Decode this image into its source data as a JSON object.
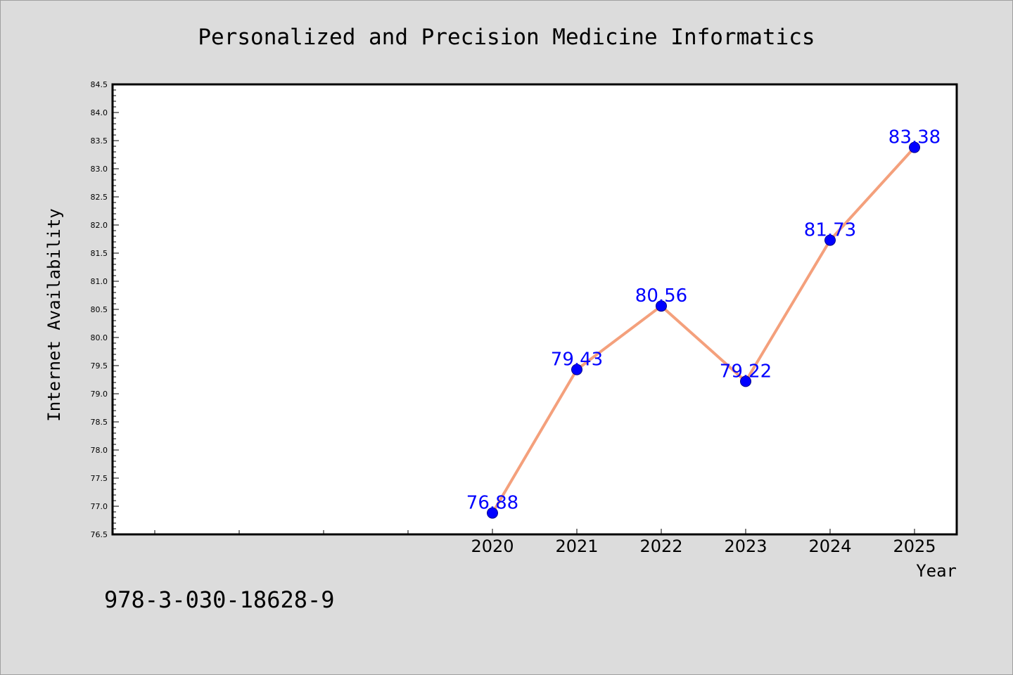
{
  "isbn": "978-3-030-18628-9",
  "chart_data": {
    "type": "line",
    "title": "Personalized and Precision Medicine Informatics",
    "xlabel": "Year",
    "ylabel": "Internet Availability",
    "x": [
      "2020",
      "2021",
      "2022",
      "2023",
      "2024",
      "2025"
    ],
    "series": [
      {
        "values": [
          76.88,
          79.43,
          80.56,
          79.22,
          81.73,
          83.38
        ],
        "labels": [
          "76.88",
          "79.43",
          "80.56",
          "79.22",
          "81.73",
          "83.38"
        ]
      }
    ],
    "ylim": [
      76.5,
      84.5
    ],
    "yticks": [
      "76.5",
      "77.0",
      "77.5",
      "78.0",
      "78.5",
      "79.0",
      "79.5",
      "80.0",
      "80.5",
      "81.0",
      "81.5",
      "82.0",
      "82.5",
      "83.0",
      "83.5",
      "84.0",
      "84.5"
    ],
    "grid": false,
    "legend": "none",
    "colors": {
      "line": "#f4a07c",
      "marker": "#0000ff",
      "label": "#0000ff"
    }
  }
}
